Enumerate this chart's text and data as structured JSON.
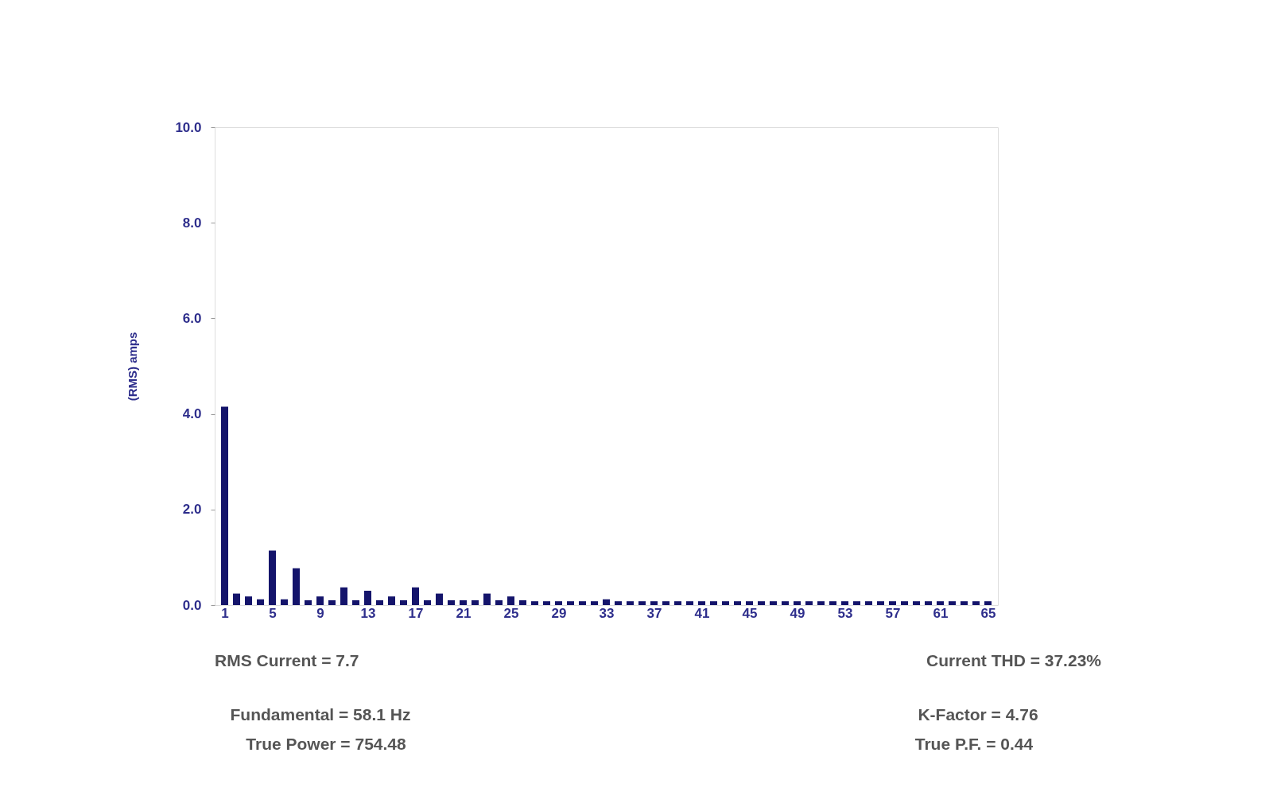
{
  "chart_data": {
    "type": "bar",
    "ylabel": "(RMS) amps",
    "categories": [
      "1",
      null,
      null,
      null,
      "5",
      null,
      null,
      null,
      "9",
      null,
      null,
      null,
      "13",
      null,
      null,
      null,
      "17",
      null,
      null,
      null,
      "21",
      null,
      null,
      null,
      "25",
      null,
      null,
      null,
      "29",
      null,
      null,
      null,
      "33",
      null,
      null,
      null,
      "37",
      null,
      null,
      null,
      "41",
      null,
      null,
      null,
      "45",
      null,
      null,
      null,
      "49",
      null,
      null,
      null,
      "53",
      null,
      null,
      null,
      "57",
      null,
      null,
      null,
      "61",
      null,
      null,
      null,
      "65"
    ],
    "series": [
      {
        "color": "#14146b",
        "values": [
          4.15,
          0.24,
          0.18,
          0.12,
          1.14,
          0.12,
          0.77,
          0.1,
          0.18,
          0.1,
          0.37,
          0.1,
          0.3,
          0.1,
          0.18,
          0.1,
          0.37,
          0.1,
          0.24,
          0.1,
          0.1,
          0.1,
          0.24,
          0.1,
          0.18,
          0.1,
          0.08,
          0.08,
          0.08,
          0.08,
          0.08,
          0.08,
          0.12,
          0.08,
          0.08,
          0.08,
          0.08,
          0.08,
          0.08,
          0.08,
          0.08,
          0.08,
          0.08,
          0.08,
          0.08,
          0.08,
          0.08,
          0.08,
          0.08,
          0.08,
          0.08,
          0.08,
          0.08,
          0.08,
          0.08,
          0.08,
          0.08,
          0.08,
          0.08,
          0.08,
          0.08,
          0.08,
          0.08,
          0.08,
          0.08
        ]
      }
    ],
    "ylim": [
      0,
      10
    ],
    "yticks": [
      {
        "value": 0,
        "label": "0.0"
      },
      {
        "value": 2,
        "label": "2.0"
      },
      {
        "value": 4,
        "label": "4.0"
      },
      {
        "value": 6,
        "label": "6.0"
      },
      {
        "value": 8,
        "label": "8.0"
      },
      {
        "value": 10,
        "label": "10.0"
      }
    ],
    "grid": false,
    "annotations": [
      "RMS Current = 7.7",
      "Current THD = 37.23%",
      "Fundamental = 58.1 Hz",
      "True Power = 754.48",
      "K-Factor = 4.76",
      "True P.F. = 0.44"
    ]
  }
}
